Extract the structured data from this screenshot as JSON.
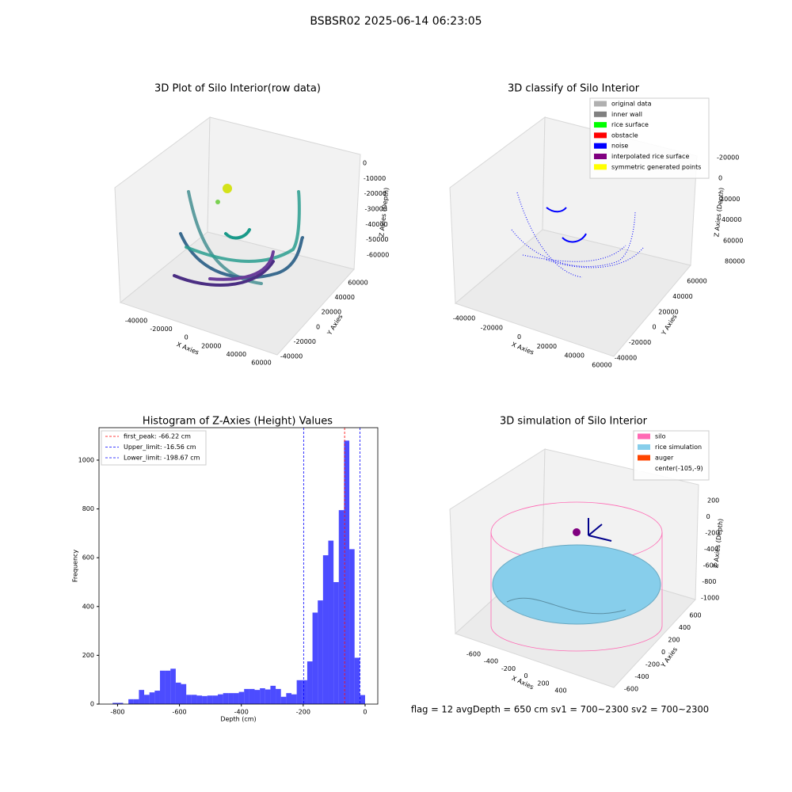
{
  "title": "BSBSR02 2025-06-14 06:23:05",
  "footer": "flag = 12   avgDepth = 650 cm  sv1 = 700~2300  sv2 = 700~2300",
  "chart_data": [
    {
      "type": "scatter3d",
      "title": "3D Plot of Silo Interior(row data)",
      "xlabel": "X Axies",
      "ylabel": "Y Axies",
      "zlabel": "Z Axies (Depth)",
      "xticks": [
        -40000,
        -20000,
        0,
        20000,
        40000,
        60000
      ],
      "yticks": [
        60000,
        40000,
        20000,
        0,
        -20000,
        -40000
      ],
      "zticks": [
        0,
        -10000,
        -20000,
        -30000,
        -40000,
        -50000,
        -60000
      ]
    },
    {
      "type": "scatter3d",
      "title": "3D classify of Silo Interior",
      "xlabel": "X Axies",
      "ylabel": "Y Axies",
      "zlabel": "Z Axies (Depth)",
      "xticks": [
        -40000,
        -20000,
        0,
        20000,
        40000,
        60000
      ],
      "yticks": [
        60000,
        40000,
        20000,
        0,
        -20000,
        -40000
      ],
      "zticks": [
        -20000,
        0,
        20000,
        40000,
        60000,
        80000
      ],
      "legend": [
        {
          "name": "original data",
          "color": "#b0b0b0"
        },
        {
          "name": "inner wall",
          "color": "#808080"
        },
        {
          "name": "rice surface",
          "color": "#00ff00"
        },
        {
          "name": "obstacle",
          "color": "#ff0000"
        },
        {
          "name": "noise",
          "color": "#0000ff"
        },
        {
          "name": "interpolated rice surface",
          "color": "#800080"
        },
        {
          "name": "symmetric generated points",
          "color": "#ffff00"
        }
      ]
    },
    {
      "type": "histogram",
      "title": "Histogram of Z-Axies (Height) Values",
      "xlabel": "Depth (cm)",
      "ylabel": "Frequency",
      "color": "#0000ff",
      "bins": [
        -816,
        -799,
        -782,
        -765,
        -748,
        -731,
        -714,
        -697,
        -680,
        -663,
        -646,
        -629,
        -612,
        -595,
        -578,
        -561,
        -544,
        -527,
        -510,
        -493,
        -476,
        -459,
        -442,
        -425,
        -408,
        -391,
        -374,
        -357,
        -340,
        -323,
        -306,
        -289,
        -272,
        -255,
        -238,
        -221,
        -204,
        -187,
        -170,
        -153,
        -136,
        -119,
        -102,
        -85,
        -68,
        -51,
        -34,
        -17,
        0
      ],
      "counts": [
        5,
        5,
        0,
        20,
        20,
        58,
        38,
        48,
        55,
        137,
        137,
        145,
        88,
        82,
        38,
        38,
        35,
        33,
        35,
        35,
        40,
        45,
        45,
        45,
        50,
        62,
        62,
        58,
        65,
        60,
        75,
        62,
        30,
        45,
        40,
        98,
        98,
        175,
        375,
        425,
        610,
        670,
        500,
        795,
        1080,
        635,
        190,
        37
      ],
      "xlim": [
        -860,
        41
      ],
      "ylim": [
        0,
        1133
      ],
      "xticks": [
        -800,
        -600,
        -400,
        -200,
        0
      ],
      "yticks": [
        0,
        200,
        400,
        600,
        800,
        1000
      ],
      "lines": [
        {
          "label": "first_peak: -66.22 cm",
          "value": -66.22,
          "color": "#ff0000"
        },
        {
          "label": "Upper_limit: -16.56 cm",
          "value": -16.56,
          "color": "#0000ff"
        },
        {
          "label": "Lower_limit: -198.67 cm",
          "value": -198.67,
          "color": "#0000ff"
        }
      ]
    },
    {
      "type": "surface3d",
      "title": "3D simulation of Silo Interior",
      "xlabel": "X Axies",
      "ylabel": "Y Axies",
      "zlabel": "Z Axies (Depth)",
      "xticks": [
        -600,
        -400,
        -200,
        0,
        200,
        400
      ],
      "yticks": [
        -600,
        -400,
        -200,
        0,
        200,
        400,
        600
      ],
      "zticks": [
        200,
        0,
        -200,
        -400,
        -600,
        -800,
        -1000
      ],
      "legend": [
        {
          "name": "silo",
          "color": "#ff69b4"
        },
        {
          "name": "rice simulation",
          "color": "#87ceeb"
        },
        {
          "name": "auger",
          "color": "#ff4500"
        },
        {
          "name": "center(-105,-9)",
          "color": "#ffffff"
        }
      ]
    }
  ]
}
